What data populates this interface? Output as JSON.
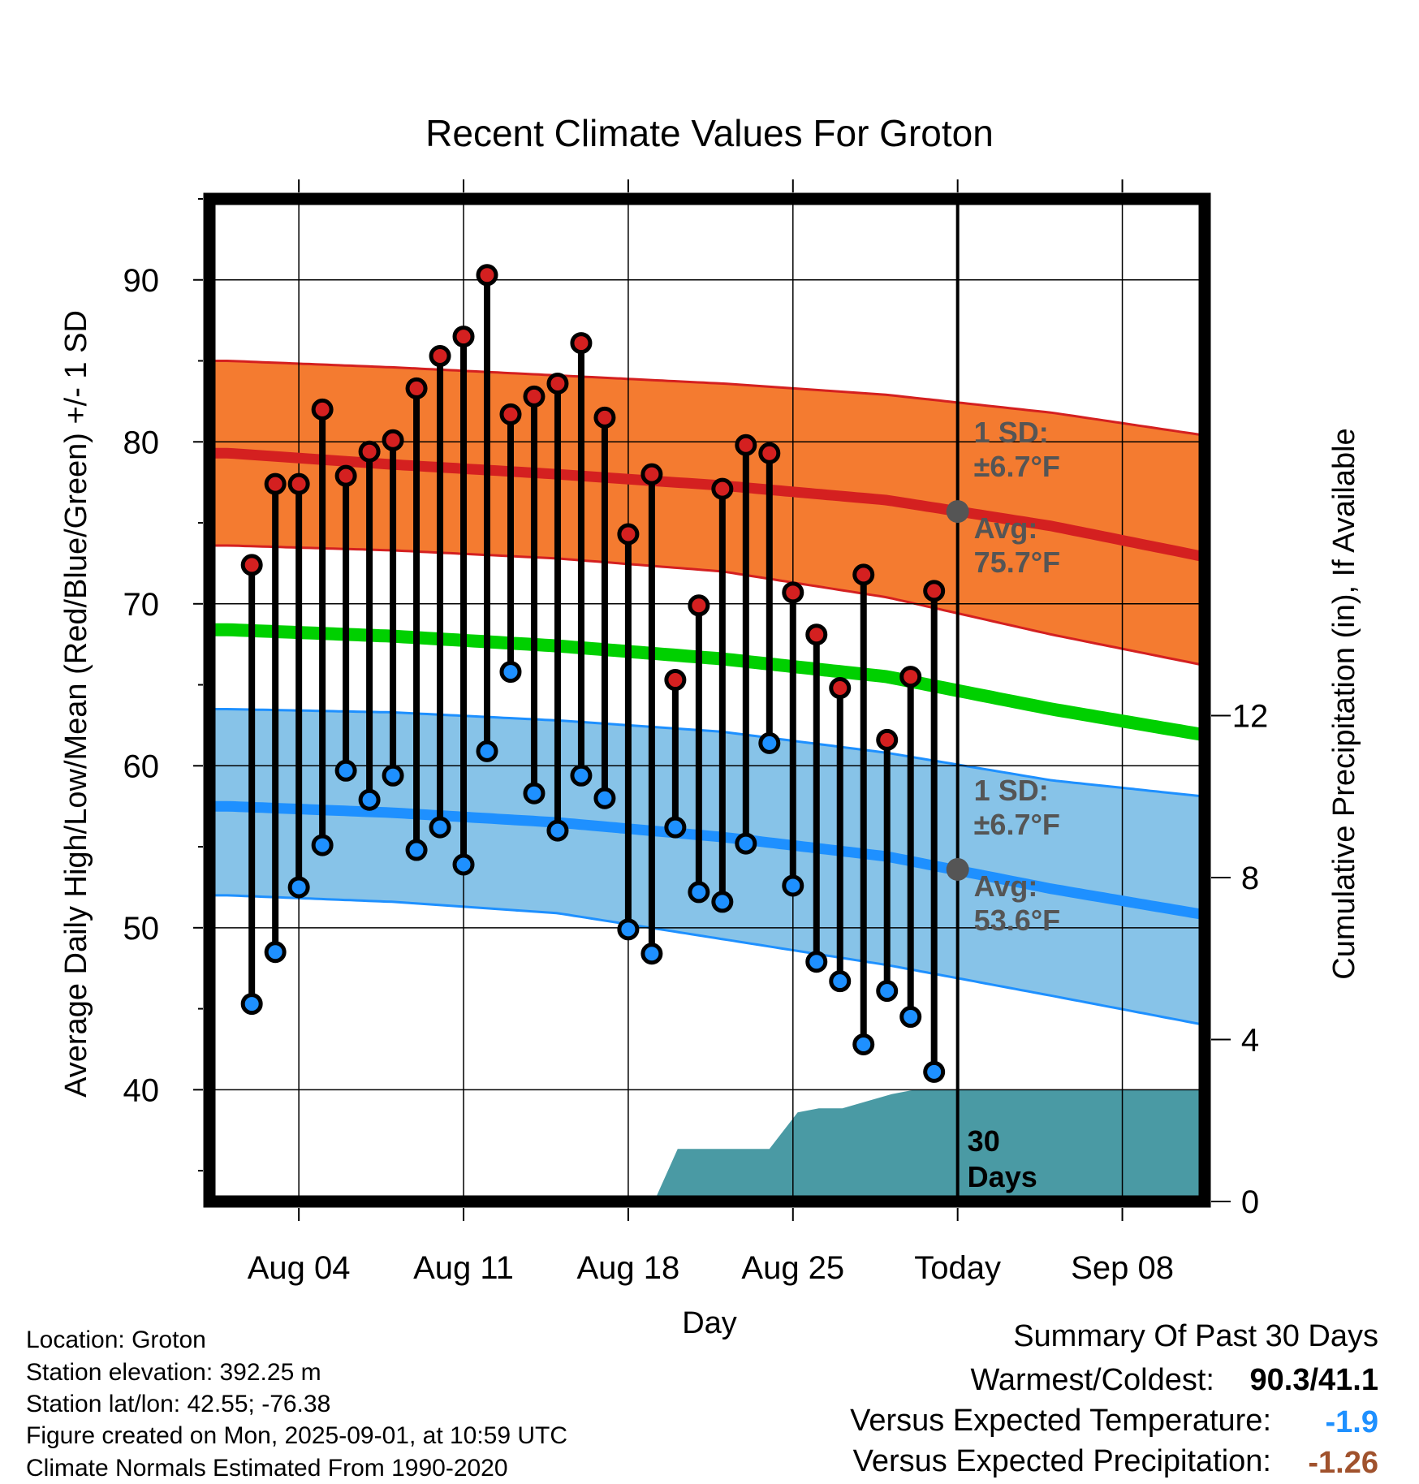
{
  "chart_data": {
    "type": "line",
    "title": "Recent Climate Values For Groton",
    "xlabel": "Day",
    "ylabel": "Average Daily High/Low/Mean (Red/Blue/Green) +/- 1 SD",
    "y2label": "Cumulative Precipitation (in), If Available",
    "x_tick_labels": [
      "Aug 04",
      "Aug 11",
      "Aug 18",
      "Aug 25",
      "Today",
      "Sep 08"
    ],
    "x_tick_days": [
      4,
      11,
      18,
      25,
      32,
      39
    ],
    "xlim": [
      0.2,
      42.5
    ],
    "today_day": 32,
    "ylim": [
      33.1,
      95
    ],
    "y_ticks": [
      40,
      50,
      60,
      70,
      80,
      90
    ],
    "y2_ticks": [
      0,
      4,
      8,
      12
    ],
    "y2_units_per_degree": 0.4,
    "grid": true,
    "observed": {
      "days": [
        2,
        3,
        4,
        5,
        6,
        7,
        8,
        9,
        10,
        11,
        12,
        13,
        14,
        15,
        16,
        17,
        18,
        19,
        20,
        21,
        22,
        23,
        24,
        25,
        26,
        27,
        28,
        29,
        30,
        31
      ],
      "high": [
        72.4,
        77.4,
        77.4,
        82.0,
        77.9,
        79.4,
        80.1,
        83.3,
        85.3,
        86.5,
        90.3,
        81.7,
        82.8,
        83.6,
        86.1,
        81.5,
        74.3,
        78.0,
        65.3,
        69.9,
        77.1,
        79.8,
        79.3,
        70.7,
        68.1,
        64.8,
        71.8,
        61.6,
        65.5,
        70.8
      ],
      "low": [
        45.3,
        48.5,
        52.5,
        55.1,
        59.7,
        57.9,
        59.4,
        54.8,
        56.2,
        53.9,
        60.9,
        65.8,
        58.3,
        56.0,
        59.4,
        58.0,
        49.9,
        48.4,
        56.2,
        52.2,
        51.6,
        55.2,
        61.4,
        52.6,
        47.9,
        46.7,
        42.8,
        46.1,
        44.5,
        41.1
      ]
    },
    "normals": {
      "days": [
        1,
        8,
        15,
        22,
        29,
        36,
        42.5
      ],
      "avg_high": [
        79.3,
        78.6,
        78.0,
        77.3,
        76.4,
        74.8,
        72.9
      ],
      "high_sd_upper": [
        85.0,
        84.6,
        84.1,
        83.6,
        82.9,
        81.8,
        80.4
      ],
      "high_sd_lower": [
        73.6,
        73.3,
        72.8,
        72.0,
        70.4,
        68.1,
        66.2
      ],
      "mean": [
        68.4,
        68.0,
        67.4,
        66.6,
        65.5,
        63.5,
        61.9
      ],
      "avg_low": [
        57.5,
        57.1,
        56.5,
        55.6,
        54.4,
        52.4,
        50.8
      ],
      "low_sd_upper": [
        63.5,
        63.3,
        62.8,
        62.1,
        60.8,
        59.1,
        58.1
      ],
      "low_sd_lower": [
        52.0,
        51.6,
        50.9,
        49.3,
        47.7,
        45.8,
        44.0
      ]
    },
    "precip": {
      "days": [
        19.1,
        20.1,
        21.1,
        24.0,
        25.2,
        26.1,
        27.1,
        28.0,
        29.2,
        30.1,
        42.5
      ],
      "cumulative": [
        0.0,
        1.3,
        1.3,
        1.3,
        2.2,
        2.3,
        2.3,
        2.45,
        2.65,
        2.75,
        2.75
      ]
    },
    "high_annotation": {
      "sd_label": "1 SD:",
      "sd_value": "±6.7°F",
      "avg_label": "Avg:",
      "avg_value": "75.7°F",
      "avg": 75.7
    },
    "low_annotation": {
      "sd_label": "1 SD:",
      "sd_value": "±6.7°F",
      "avg_label": "Avg:",
      "avg_value": "53.6°F",
      "avg": 53.6
    },
    "days_label": [
      "30",
      "Days"
    ],
    "colors": {
      "high_band": "#f47b30",
      "high_line": "#d42020",
      "low_band": "#87c3e8",
      "low_line": "#1e90ff",
      "mean_line": "#00d000",
      "precip": "#4a9aa4",
      "high_dot": "#d42020",
      "low_dot": "#1e90ff",
      "annotation": "#555555",
      "today_dot": "#555555"
    }
  },
  "info": {
    "location": "Location: Groton",
    "elevation": "Station elevation: 392.25 m",
    "latlon": "Station lat/lon: 42.55; -76.38",
    "created": "Figure created on Mon, 2025-09-01, at 10:59 UTC",
    "normals": "Climate Normals Estimated From 1990-2020"
  },
  "summary": {
    "title": "Summary Of Past 30 Days",
    "warm_cold_label": "Warmest/Coldest:",
    "warm_cold_value": "90.3/41.1",
    "temp_label": "Versus Expected Temperature:",
    "temp_value": "-1.9",
    "precip_label": "Versus Expected Precipitation:",
    "precip_value": "-1.26",
    "temp_color": "#1e90ff",
    "precip_color": "#a0522d"
  }
}
